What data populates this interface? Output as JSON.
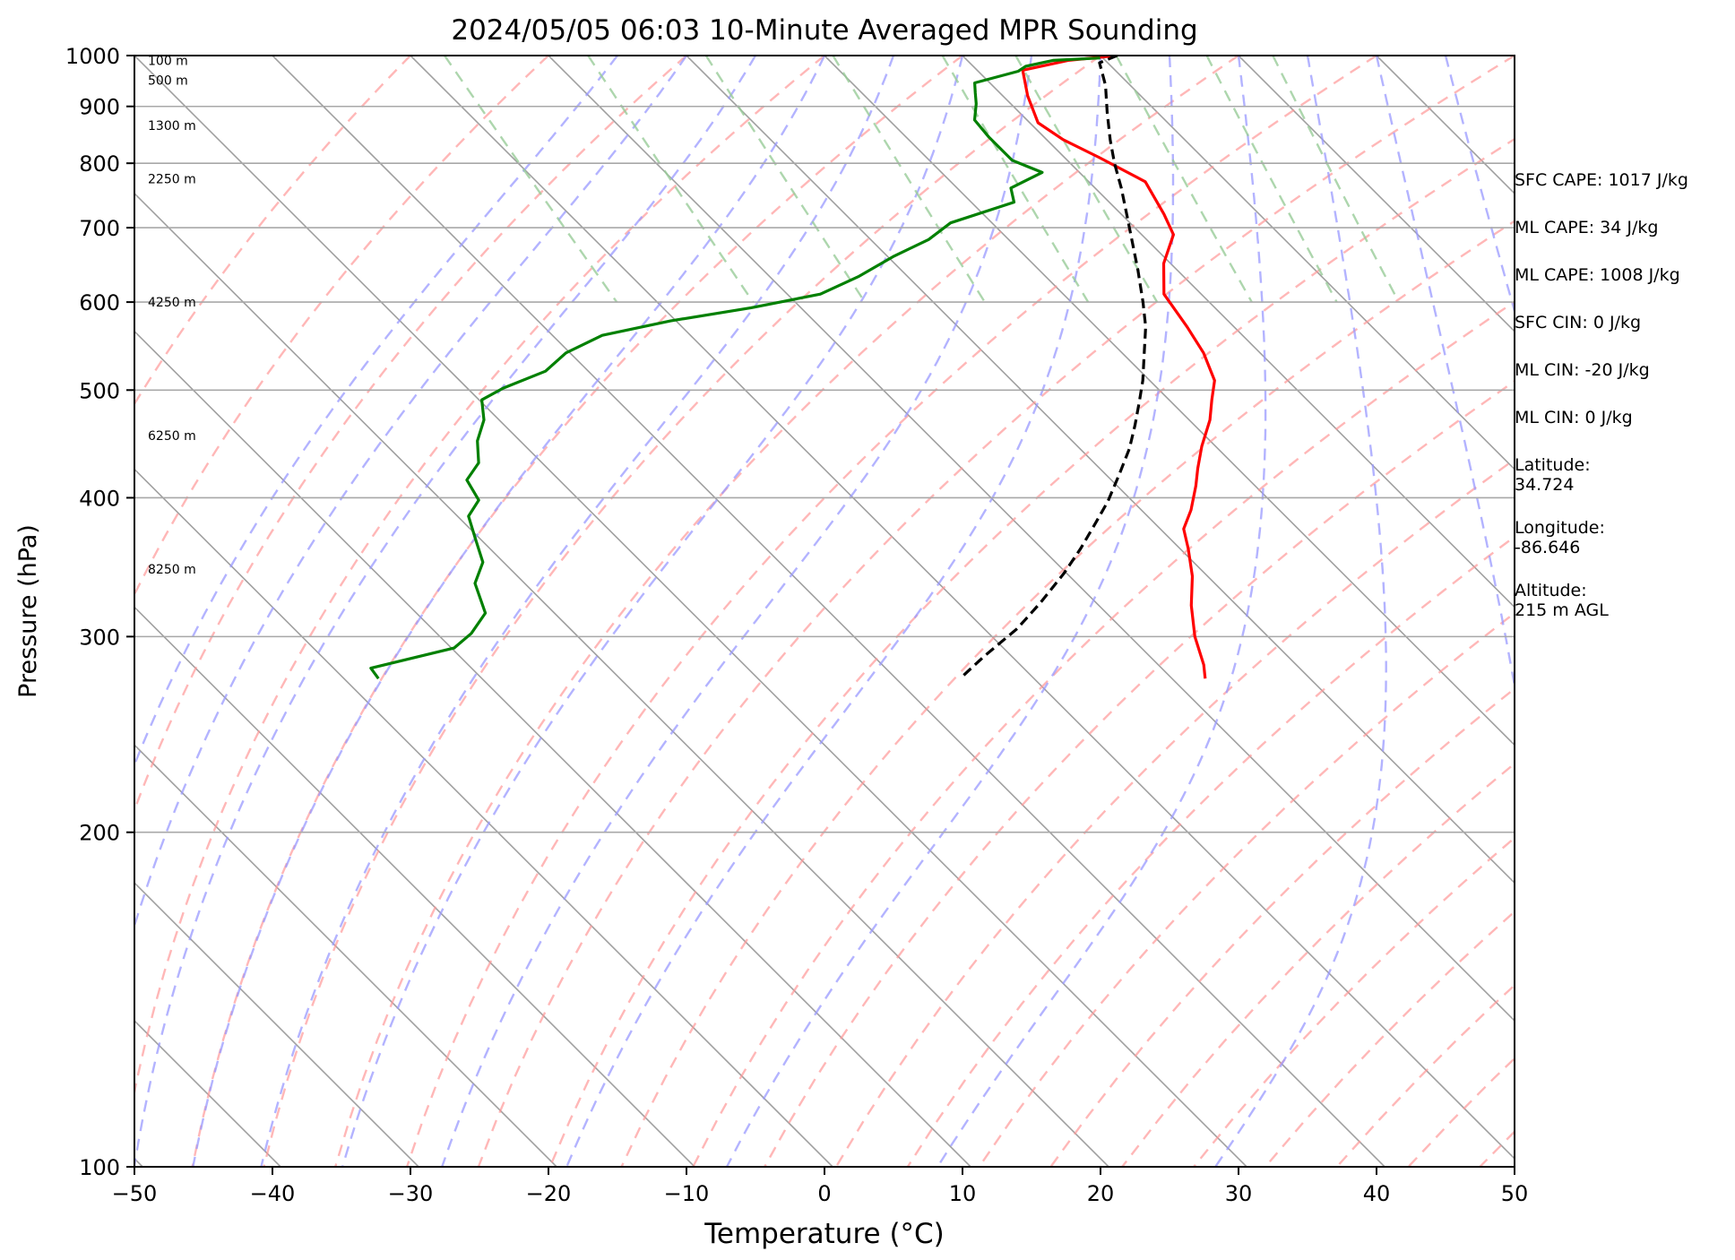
{
  "chart_data": {
    "type": "line",
    "title": "2024/05/05 06:03 10-Minute Averaged MPR Sounding",
    "xlabel": "Temperature (°C)",
    "ylabel": "Pressure (hPa)",
    "xlim": [
      -50,
      50
    ],
    "ylim": [
      1000,
      100
    ],
    "y_scale": "log",
    "skew": "skew-T log-p diagram",
    "grid": true,
    "x_ticks": [
      "−50",
      "−40",
      "−30",
      "−20",
      "−10",
      "0",
      "10",
      "20",
      "30",
      "40",
      "50"
    ],
    "y_ticks": [
      "100",
      "200",
      "300",
      "400",
      "500",
      "600",
      "700",
      "800",
      "900",
      "1000"
    ],
    "height_labels": [
      {
        "label": "8250 m",
        "pressure": 345
      },
      {
        "label": "6250 m",
        "pressure": 455
      },
      {
        "label": "4250 m",
        "pressure": 600
      },
      {
        "label": "2250 m",
        "pressure": 775
      },
      {
        "label": "1300 m",
        "pressure": 865
      },
      {
        "label": "500 m",
        "pressure": 950
      },
      {
        "label": "100 m",
        "pressure": 990
      }
    ],
    "series": [
      {
        "color": "#ff0000",
        "style": "solid",
        "points": [
          [
            21.2,
            1000
          ],
          [
            17.3,
            990
          ],
          [
            13.3,
            970
          ],
          [
            11.8,
            920
          ],
          [
            10.6,
            870
          ],
          [
            11.2,
            840
          ],
          [
            12.5,
            810
          ],
          [
            14.1,
            770
          ],
          [
            13.1,
            720
          ],
          [
            12.3,
            690
          ],
          [
            9.5,
            650
          ],
          [
            7.3,
            610
          ],
          [
            6.6,
            570
          ],
          [
            5.9,
            540
          ],
          [
            4.7,
            510
          ],
          [
            3.1,
            490
          ],
          [
            1.5,
            470
          ],
          [
            -1.0,
            445
          ],
          [
            -2.9,
            425
          ],
          [
            -4.3,
            410
          ],
          [
            -6.4,
            390
          ],
          [
            -8.3,
            375
          ],
          [
            -9.4,
            360
          ],
          [
            -11.1,
            340
          ],
          [
            -13.3,
            320
          ],
          [
            -15.3,
            300
          ],
          [
            -16.7,
            283
          ],
          [
            -17.6,
            275
          ]
        ]
      },
      {
        "color": "#008000",
        "style": "solid",
        "points": [
          [
            19.8,
            995
          ],
          [
            16.2,
            990
          ],
          [
            13.8,
            978
          ],
          [
            12.9,
            968
          ],
          [
            8.9,
            945
          ],
          [
            8.2,
            925
          ],
          [
            7.5,
            905
          ],
          [
            6.2,
            875
          ],
          [
            6.0,
            845
          ],
          [
            6.0,
            805
          ],
          [
            7.3,
            785
          ],
          [
            3.9,
            760
          ],
          [
            3.1,
            738
          ],
          [
            -3.0,
            707
          ],
          [
            -5.8,
            683
          ],
          [
            -9.5,
            660
          ],
          [
            -13.5,
            633
          ],
          [
            -17.6,
            610
          ],
          [
            -23.6,
            593
          ],
          [
            -30.4,
            577
          ],
          [
            -36.4,
            560
          ],
          [
            -40.3,
            540
          ],
          [
            -43.1,
            520
          ],
          [
            -47.4,
            502
          ],
          [
            -49.8,
            490
          ],
          [
            -51.1,
            470
          ],
          [
            -53.1,
            450
          ],
          [
            -54.6,
            430
          ],
          [
            -56.7,
            415
          ],
          [
            -57.3,
            398
          ],
          [
            -59.2,
            385
          ],
          [
            -60.3,
            368
          ],
          [
            -61.5,
            350
          ],
          [
            -63.6,
            335
          ],
          [
            -65.0,
            315
          ],
          [
            -67.5,
            302
          ],
          [
            -69.8,
            293
          ],
          [
            -77.3,
            281
          ],
          [
            -77.5,
            275
          ]
        ]
      },
      {
        "color": "#000000",
        "style": "dashed",
        "points": [
          [
            21.2,
            1000
          ],
          [
            19.4,
            985
          ],
          [
            18.2,
            940
          ],
          [
            16.4,
            890
          ],
          [
            14.6,
            840
          ],
          [
            13.2,
            800
          ],
          [
            11.9,
            760
          ],
          [
            10.4,
            720
          ],
          [
            8.8,
            680
          ],
          [
            7.1,
            640
          ],
          [
            5.2,
            600
          ],
          [
            3.6,
            570
          ],
          [
            1.6,
            540
          ],
          [
            -0.5,
            510
          ],
          [
            -2.3,
            488
          ],
          [
            -4.3,
            465
          ],
          [
            -6.4,
            443
          ],
          [
            -9.0,
            420
          ],
          [
            -11.8,
            397
          ],
          [
            -14.2,
            380
          ],
          [
            -17.2,
            360
          ],
          [
            -20.2,
            342
          ],
          [
            -24.0,
            322
          ],
          [
            -27.6,
            305
          ],
          [
            -32.0,
            288
          ],
          [
            -35.1,
            276
          ]
        ]
      }
    ],
    "isotherm_color": "#a0a0a0",
    "dry_adiabat_color": "#ff9999",
    "moist_adiabat_color": "#9999ff",
    "mixing_ratio_color": "#99cc99"
  },
  "side_panel": {
    "lines": [
      "SFC CAPE: 1017 J/kg",
      "ML CAPE: 34 J/kg",
      "ML CAPE: 1008 J/kg",
      "SFC CIN: 0 J/kg",
      "ML CIN: -20 J/kg",
      "ML CIN: 0 J/kg"
    ],
    "latitude_label": "Latitude:",
    "latitude_value": "34.724",
    "longitude_label": "Longitude:",
    "longitude_value": "-86.646",
    "altitude_label": "Altitude:",
    "altitude_value": "215 m AGL"
  }
}
